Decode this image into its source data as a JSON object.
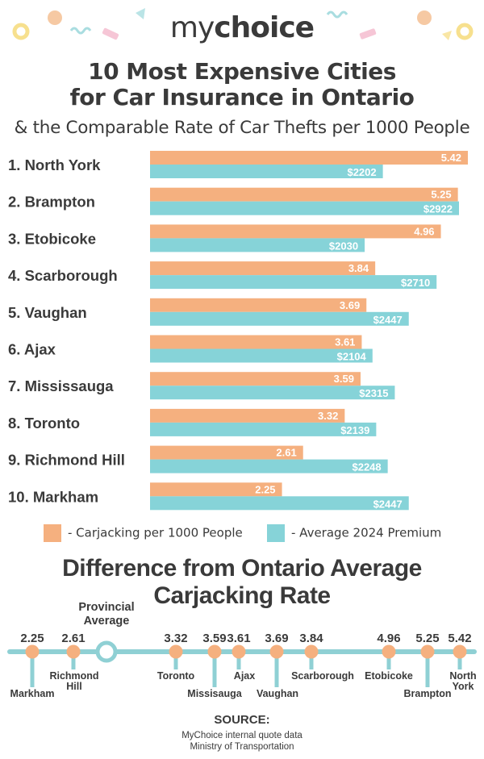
{
  "brand": {
    "my": "my",
    "choice": "choice"
  },
  "header": {
    "title_line1": "10 Most Expensive Cities",
    "title_line2": "for Car Insurance in Ontario",
    "subtitle": "& the Comparable Rate of Car Thefts per 1000 People"
  },
  "colors": {
    "carjacking": "#f5b07f",
    "premium": "#86d3d8",
    "text": "#3a3a3a",
    "timeline": "#8fd0d4",
    "deco_yellow": "#f7e08e",
    "deco_peach": "#f6c9a3",
    "deco_pink": "#f6c6d6",
    "deco_teal": "#a9dde0"
  },
  "chart_data": [
    {
      "type": "bar",
      "orientation": "horizontal",
      "categories": [
        "1.  North York",
        "2. Brampton",
        "3. Etobicoke",
        "4. Scarborough",
        "5. Vaughan",
        "6. Ajax",
        "7. Mississauga",
        "8. Toronto",
        "9. Richmond Hill",
        "10. Markham"
      ],
      "series": [
        {
          "name": "- Carjacking per 1000 People",
          "values": [
            5.42,
            5.25,
            4.96,
            3.84,
            3.69,
            3.61,
            3.59,
            3.32,
            2.61,
            2.25
          ],
          "labels": [
            "5.42",
            "5.25",
            "4.96",
            "3.84",
            "3.69",
            "3.61",
            "3.59",
            "3.32",
            "2.61",
            "2.25"
          ]
        },
        {
          "name": "- Average 2024 Premium",
          "values": [
            2202,
            2922,
            2030,
            2710,
            2447,
            2104,
            2315,
            2139,
            2248,
            2447
          ],
          "labels": [
            "$2202",
            "$2922",
            "$2030",
            "$2710",
            "$2447",
            "$2104",
            "$2315",
            "$2139",
            "$2248",
            "$2447"
          ]
        }
      ],
      "title": "10 Most Expensive Cities for Car Insurance in Ontario",
      "legend_position": "bottom"
    },
    {
      "type": "timeline",
      "title": "Difference from Ontario Average Carjacking Rate",
      "points": [
        {
          "city": "Markham",
          "value": 2.25,
          "label": "2.25",
          "side": "below"
        },
        {
          "city": "Richmond Hill",
          "value": 2.61,
          "label": "2.61",
          "side": "above"
        },
        {
          "city": "Toronto",
          "value": 3.32,
          "label": "3.32",
          "side": "above"
        },
        {
          "city": "Missisauga",
          "value": 3.59,
          "label": "3.59",
          "side": "below"
        },
        {
          "city": "Ajax",
          "value": 3.61,
          "label": "3.61",
          "side": "above"
        },
        {
          "city": "Vaughan",
          "value": 3.69,
          "label": "3.69",
          "side": "below"
        },
        {
          "city": "Scarborough",
          "value": 3.84,
          "label": "3.84",
          "side": "above"
        },
        {
          "city": "Etobicoke",
          "value": 4.96,
          "label": "4.96",
          "side": "above"
        },
        {
          "city": "Brampton",
          "value": 5.25,
          "label": "5.25",
          "side": "below"
        },
        {
          "city": "North York",
          "value": 5.42,
          "label": "5.42",
          "side": "above"
        }
      ],
      "provincial_average": {
        "label": "Provincial Average",
        "value": 2.85
      }
    }
  ],
  "legend": {
    "carjacking": "- Carjacking per 1000 People",
    "premium": "- Average 2024 Premium"
  },
  "section2": {
    "title_line1": "Difference from Ontario Average",
    "title_line2": "Carjacking Rate"
  },
  "source": {
    "title": "SOURCE:",
    "line1": "MyChoice internal quote data",
    "line2": "Ministry of Transportation"
  }
}
